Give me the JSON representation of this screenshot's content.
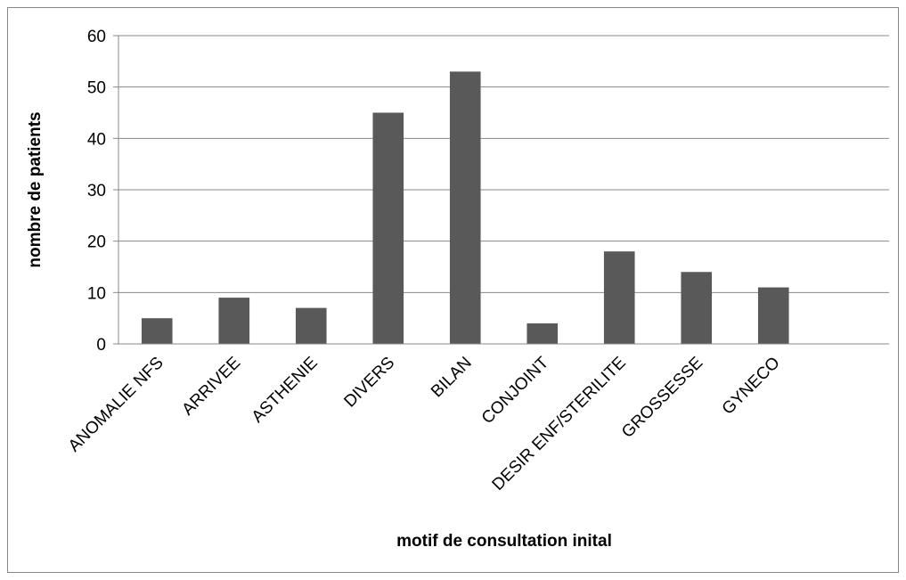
{
  "chart_data": {
    "type": "bar",
    "x_label": "motif de consultation inital",
    "y_label": "nombre de patients",
    "categories": [
      "ANOMALIE NFS",
      "ARRIVEE",
      "ASTHENIE",
      "DIVERS",
      "BILAN",
      "CONJOINT",
      "DESIR ENF/STERILITE",
      "GROSSESSE",
      "GYNECO",
      null
    ],
    "values": [
      5,
      9,
      7,
      45,
      53,
      4,
      18,
      14,
      11,
      null
    ],
    "color": "#595959",
    "ylim": [
      0,
      60
    ],
    "yticks": [
      0,
      10,
      20,
      30,
      40,
      50,
      60
    ],
    "grid": true
  }
}
